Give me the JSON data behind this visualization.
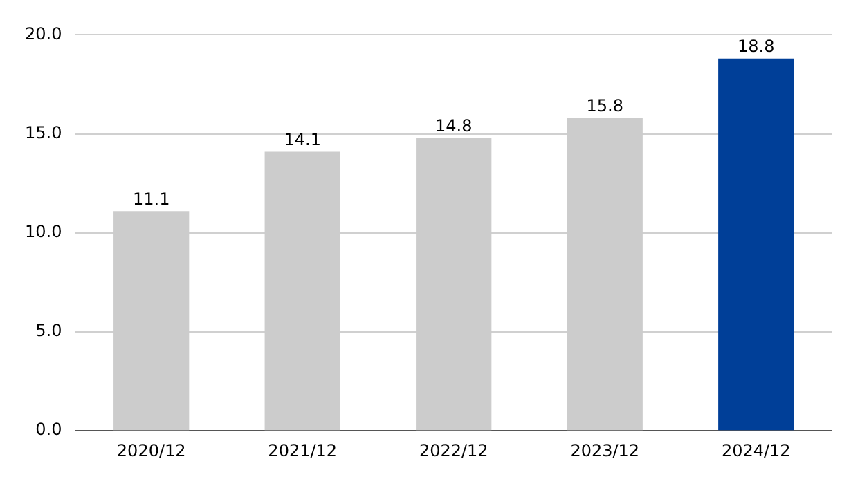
{
  "chart_data": {
    "type": "bar",
    "categories": [
      "2020/12",
      "2021/12",
      "2022/12",
      "2023/12",
      "2024/12"
    ],
    "values": [
      11.1,
      14.1,
      14.8,
      15.8,
      18.8
    ],
    "colors": [
      "#cccccc",
      "#cccccc",
      "#cccccc",
      "#cccccc",
      "#003f98"
    ],
    "ylim": [
      0,
      20
    ],
    "yticks": [
      {
        "value": 0,
        "label": "0.0"
      },
      {
        "value": 5,
        "label": "5.0"
      },
      {
        "value": 10,
        "label": "10.0"
      },
      {
        "value": 15,
        "label": "15.0"
      },
      {
        "value": 20,
        "label": "20.0"
      }
    ],
    "grid": "y",
    "data_labels": true,
    "legend": false
  }
}
